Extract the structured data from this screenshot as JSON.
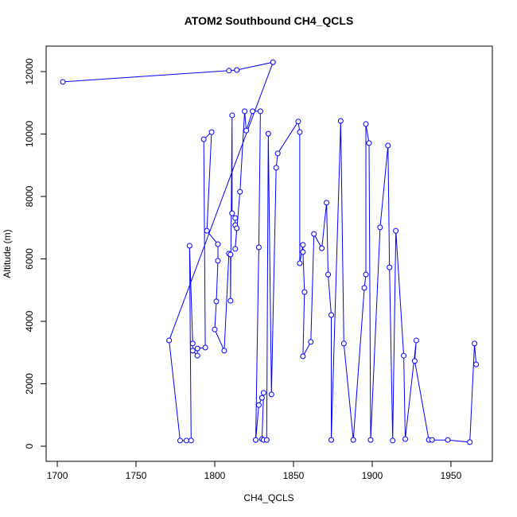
{
  "chart_data": {
    "type": "line",
    "title": "ATOM2 Southbound CH4_QCLS",
    "x_label": "CH4_QCLS",
    "y_label": "Altitude (m)",
    "color": "#0000ff",
    "markers": true,
    "grid": false,
    "xlim": [
      1692.9,
      1976.3
    ],
    "ylim": [
      -484,
      12815
    ],
    "xticks": [
      1700,
      1750,
      1800,
      1850,
      1900,
      1950
    ],
    "yticks": [
      0,
      2000,
      4000,
      6000,
      8000,
      10000,
      12000
    ],
    "x": [
      1703.5,
      1809,
      1814,
      1837,
      1771,
      1778,
      1782,
      1785,
      1784,
      1786,
      1786,
      1789,
      1789,
      1794,
      1793,
      1798,
      1795,
      1802,
      1802,
      1801,
      1800,
      1806,
      1809,
      1810,
      1810,
      1811,
      1811,
      1813,
      1813,
      1814,
      1813,
      1816,
      1819,
      1820,
      1824,
      1829,
      1828,
      1826,
      1828,
      1830,
      1831,
      1830,
      1831,
      1833,
      1834,
      1836,
      1839,
      1840,
      1853,
      1854,
      1854,
      1856,
      1856,
      1857,
      1856,
      1861,
      1863,
      1868,
      1871,
      1872,
      1874,
      1874,
      1880,
      1882,
      1888,
      1895,
      1896,
      1896,
      1898,
      1899,
      1905,
      1910,
      1911,
      1913,
      1915,
      1920,
      1921,
      1928,
      1927,
      1936,
      1938,
      1948,
      1962,
      1965,
      1966
    ],
    "y": [
      11670,
      12030,
      12050,
      12300,
      3390,
      180,
      180,
      180,
      6420,
      3290,
      3060,
      2900,
      3130,
      3160,
      9830,
      10060,
      6900,
      6470,
      5940,
      4640,
      3740,
      3060,
      6170,
      6140,
      4660,
      10600,
      7460,
      7310,
      7080,
      6980,
      6320,
      8150,
      10730,
      10110,
      10730,
      10730,
      6370,
      200,
      1320,
      1550,
      1710,
      230,
      200,
      200,
      10010,
      1660,
      8920,
      9380,
      10400,
      10060,
      5860,
      6450,
      6220,
      4940,
      2880,
      3340,
      6800,
      6340,
      7800,
      5500,
      4200,
      200,
      10420,
      3290,
      200,
      5070,
      5500,
      10320,
      9710,
      200,
      7010,
      9630,
      5730,
      180,
      6900,
      2900,
      230,
      3390,
      2730,
      200,
      200,
      200,
      130,
      3290,
      2620
    ]
  }
}
